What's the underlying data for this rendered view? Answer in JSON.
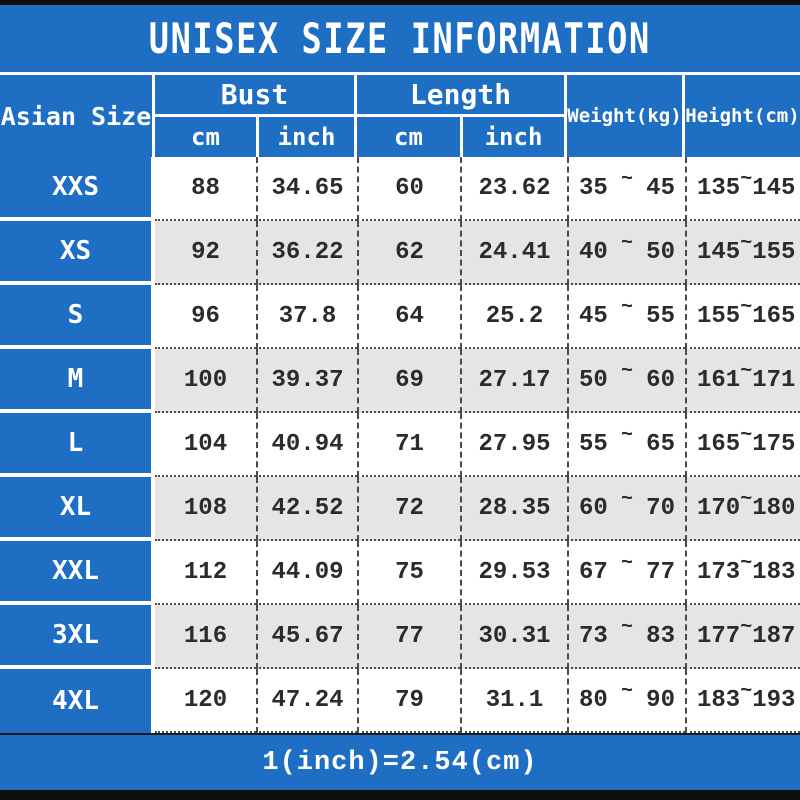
{
  "title": "UNISEX SIZE INFORMATION",
  "footer_note": "1(inch)=2.54(cm)",
  "tilde": "~",
  "colors": {
    "blue": "#1e6fc3",
    "alt_row_gray": "#e6e4e5",
    "bar_black": "#0e0e0e",
    "text_dark": "#2b2b2b",
    "text_white": "#ffffff"
  },
  "header": {
    "size_col": "Asian Size",
    "bust_group": "Bust",
    "length_group": "Length",
    "bust_cm": "cm",
    "bust_inch": "inch",
    "length_cm": "cm",
    "length_inch": "inch",
    "weight_col": "Weight(kg)",
    "height_col": "Height(cm)"
  },
  "rows": [
    {
      "size": "XXS",
      "bust_cm": "88",
      "bust_inch": "34.65",
      "length_cm": "60",
      "length_inch": "23.62",
      "weight": {
        "min": "35",
        "max": "45"
      },
      "height": {
        "min": "135",
        "max": "145"
      }
    },
    {
      "size": "XS",
      "bust_cm": "92",
      "bust_inch": "36.22",
      "length_cm": "62",
      "length_inch": "24.41",
      "weight": {
        "min": "40",
        "max": "50"
      },
      "height": {
        "min": "145",
        "max": "155"
      }
    },
    {
      "size": "S",
      "bust_cm": "96",
      "bust_inch": "37.8",
      "length_cm": "64",
      "length_inch": "25.2",
      "weight": {
        "min": "45",
        "max": "55"
      },
      "height": {
        "min": "155",
        "max": "165"
      }
    },
    {
      "size": "M",
      "bust_cm": "100",
      "bust_inch": "39.37",
      "length_cm": "69",
      "length_inch": "27.17",
      "weight": {
        "min": "50",
        "max": "60"
      },
      "height": {
        "min": "161",
        "max": "171"
      }
    },
    {
      "size": "L",
      "bust_cm": "104",
      "bust_inch": "40.94",
      "length_cm": "71",
      "length_inch": "27.95",
      "weight": {
        "min": "55",
        "max": "65"
      },
      "height": {
        "min": "165",
        "max": "175"
      }
    },
    {
      "size": "XL",
      "bust_cm": "108",
      "bust_inch": "42.52",
      "length_cm": "72",
      "length_inch": "28.35",
      "weight": {
        "min": "60",
        "max": "70"
      },
      "height": {
        "min": "170",
        "max": "180"
      }
    },
    {
      "size": "XXL",
      "bust_cm": "112",
      "bust_inch": "44.09",
      "length_cm": "75",
      "length_inch": "29.53",
      "weight": {
        "min": "67",
        "max": "77"
      },
      "height": {
        "min": "173",
        "max": "183"
      }
    },
    {
      "size": "3XL",
      "bust_cm": "116",
      "bust_inch": "45.67",
      "length_cm": "77",
      "length_inch": "30.31",
      "weight": {
        "min": "73",
        "max": "83"
      },
      "height": {
        "min": "177",
        "max": "187"
      }
    },
    {
      "size": "4XL",
      "bust_cm": "120",
      "bust_inch": "47.24",
      "length_cm": "79",
      "length_inch": "31.1",
      "weight": {
        "min": "80",
        "max": "90"
      },
      "height": {
        "min": "183",
        "max": "193"
      }
    }
  ],
  "chart_data": {
    "type": "table",
    "title": "UNISEX SIZE INFORMATION",
    "footnote": "1(inch)=2.54(cm)",
    "columns": [
      "Asian Size",
      "Bust cm",
      "Bust inch",
      "Length cm",
      "Length inch",
      "Weight(kg)",
      "Height(cm)"
    ],
    "rows": [
      [
        "XXS",
        88,
        34.65,
        60,
        23.62,
        "35~45",
        "135~145"
      ],
      [
        "XS",
        92,
        36.22,
        62,
        24.41,
        "40~50",
        "145~155"
      ],
      [
        "S",
        96,
        37.8,
        64,
        25.2,
        "45~55",
        "155~165"
      ],
      [
        "M",
        100,
        39.37,
        69,
        27.17,
        "50~60",
        "161~171"
      ],
      [
        "L",
        104,
        40.94,
        71,
        27.95,
        "55~65",
        "165~175"
      ],
      [
        "XL",
        108,
        42.52,
        72,
        28.35,
        "60~70",
        "170~180"
      ],
      [
        "XXL",
        112,
        44.09,
        75,
        29.53,
        "67~77",
        "173~183"
      ],
      [
        "3XL",
        116,
        45.67,
        77,
        30.31,
        "73~83",
        "177~187"
      ],
      [
        "4XL",
        120,
        47.24,
        79,
        31.1,
        "80~90",
        "183~193"
      ]
    ]
  }
}
